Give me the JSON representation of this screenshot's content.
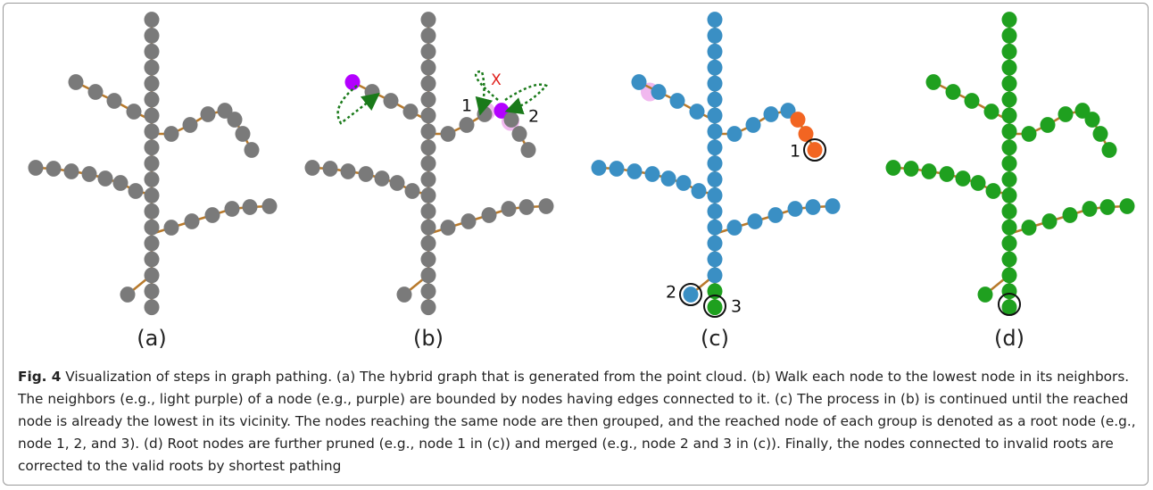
{
  "figure": {
    "panels": [
      "(a)",
      "(b)",
      "(c)",
      "(d)"
    ],
    "annotations_b": {
      "one": "1",
      "two": "2",
      "cross": "X"
    },
    "annotations_c": {
      "one": "1",
      "two": "2",
      "three": "3"
    },
    "caption": {
      "label": "Fig. 4",
      "text": " Visualization of steps in graph pathing. (a) The hybrid graph that is generated from the point cloud. (b) Walk each node to the lowest node in its neighbors. The neighbors (e.g., light purple) of a node (e.g., purple) are bounded by nodes having edges connected to it. (c) The process in (b) is continued until the reached node is already the lowest in its vicinity. The nodes reaching the same node are then grouped, and the reached node of each group is denoted as a root node (e.g., node 1, 2, and 3). (d) Root nodes are further pruned (e.g., node 1 in (c)) and merged (e.g., node 2 and 3 in (c)). Finally, the nodes connected to invalid roots are corrected to the valid roots by shortest pathing"
    }
  }
}
